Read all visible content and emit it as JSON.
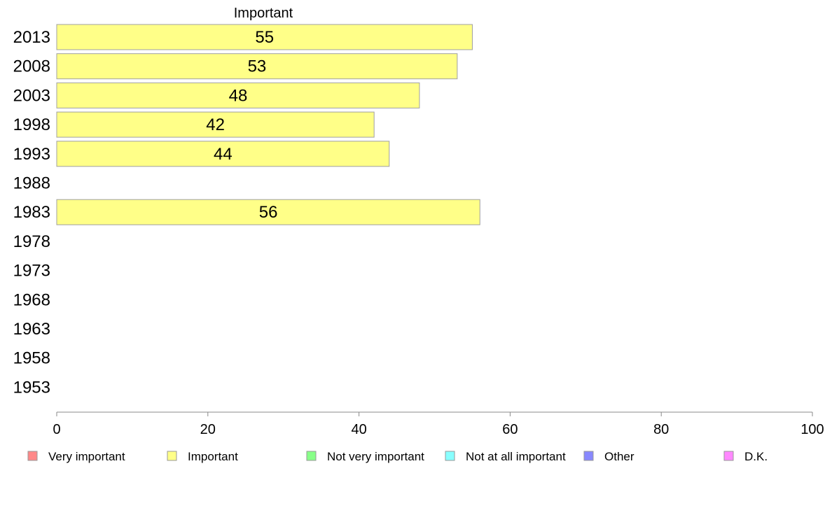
{
  "chart_data": {
    "type": "bar",
    "orientation": "horizontal",
    "title": "Important",
    "categories": [
      "2013",
      "2008",
      "2003",
      "1998",
      "1993",
      "1988",
      "1983",
      "1978",
      "1973",
      "1968",
      "1963",
      "1958",
      "1953"
    ],
    "series": [
      {
        "name": "Important",
        "color": "#ffff88",
        "values": [
          55,
          53,
          48,
          42,
          44,
          null,
          56,
          null,
          null,
          null,
          null,
          null,
          null
        ]
      }
    ],
    "x_ticks": [
      "0",
      "20",
      "40",
      "60",
      "80",
      "100"
    ],
    "xlim": [
      0,
      100
    ],
    "grid": false,
    "legend": {
      "placement": "bottom",
      "items": [
        {
          "label": "Very important",
          "color": "#ff8888"
        },
        {
          "label": "Important",
          "color": "#ffff88"
        },
        {
          "label": "Not very important",
          "color": "#88ff88"
        },
        {
          "label": "Not at all important",
          "color": "#88ffff"
        },
        {
          "label": "Other",
          "color": "#8888ff"
        },
        {
          "label": "D.K.",
          "color": "#ff88ff"
        }
      ]
    }
  }
}
